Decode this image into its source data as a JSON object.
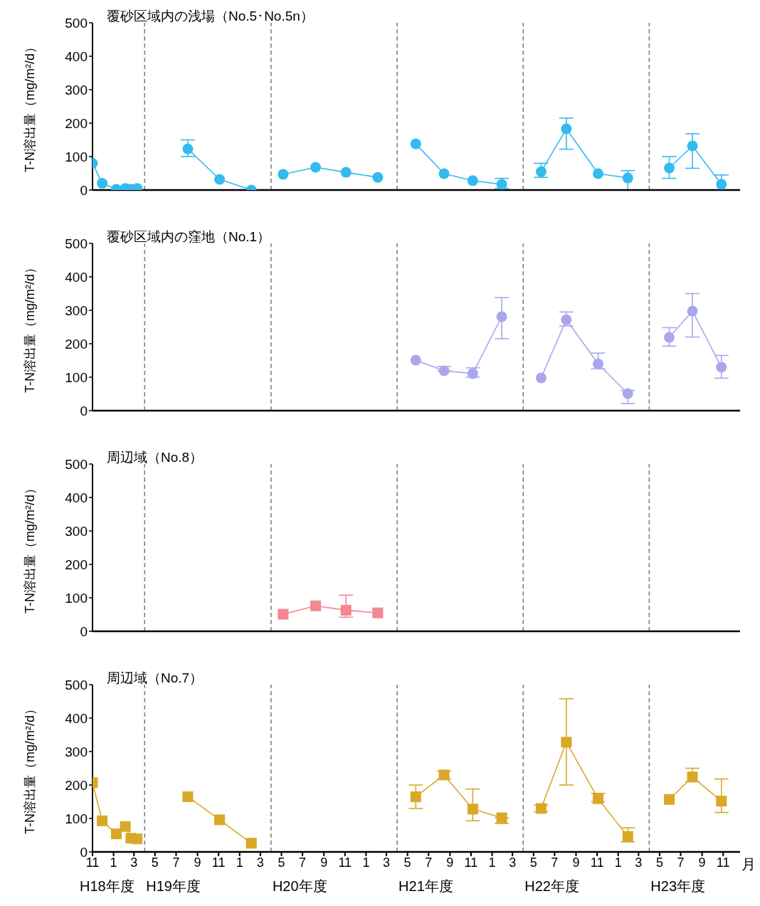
{
  "chart_data": [
    {
      "type": "line",
      "title": "覆砂区域内の浅場（No.5･No.5n）",
      "ylabel": "T-N溶出量（mg/m²/d）",
      "marker": "circle",
      "line_style": "solid",
      "tick_labels": "y",
      "x": [
        "2006-11-01",
        "2006-11-29",
        "2007-01-09",
        "2007-02-04",
        "2007-02-20",
        "2007-03-10",
        "2007-04-01",
        "2007-08-04",
        "2007-11-04",
        "2008-02-04",
        "2008-04-01",
        "2008-05-06",
        "2008-08-08",
        "2008-11-04",
        "2009-02-04",
        "2009-04-01",
        "2009-05-25",
        "2009-08-15",
        "2009-11-06",
        "2010-01-29",
        "2010-04-01",
        "2010-05-23",
        "2010-08-04",
        "2010-11-04",
        "2011-01-29",
        "2011-04-01",
        "2011-05-29",
        "2011-08-04",
        "2011-10-27"
      ],
      "series": [
        {
          "color": "#33bbee",
          "values": [
            80,
            20,
            2,
            5,
            2,
            5,
            null,
            123,
            32,
            0,
            null,
            47,
            68,
            53,
            38,
            null,
            138,
            49,
            28,
            17,
            null,
            55,
            183,
            49,
            36,
            null,
            66,
            132,
            17
          ],
          "errors": [
            null,
            null,
            null,
            null,
            null,
            null,
            null,
            [
              100,
              150
            ],
            null,
            null,
            null,
            null,
            null,
            null,
            null,
            null,
            null,
            null,
            null,
            [
              5,
              35
            ],
            null,
            [
              38,
              80
            ],
            [
              122,
              215
            ],
            null,
            [
              0,
              58
            ],
            null,
            [
              35,
              100
            ],
            [
              65,
              168
            ],
            [
              0,
              45
            ]
          ]
        }
      ],
      "xlim": [
        "2006-11-01",
        "2011-12-20"
      ],
      "xticks": [
        {
          "value": "2006-11",
          "label": null
        },
        {
          "value": "2007-01",
          "label": null
        },
        {
          "value": "2007-03",
          "label": null
        },
        {
          "value": "2007-05",
          "label": null
        },
        {
          "value": "2007-07",
          "label": null
        },
        {
          "value": "2007-09",
          "label": null
        },
        {
          "value": "2007-11",
          "label": null
        },
        {
          "value": "2008-01",
          "label": null
        },
        {
          "value": "2008-03",
          "label": null
        },
        {
          "value": "2008-05",
          "label": null
        },
        {
          "value": "2008-07",
          "label": null
        },
        {
          "value": "2008-09",
          "label": null
        },
        {
          "value": "2008-11",
          "label": null
        },
        {
          "value": "2009-01",
          "label": null
        },
        {
          "value": "2009-03",
          "label": null
        },
        {
          "value": "2009-05",
          "label": null
        },
        {
          "value": "2009-07",
          "label": null
        },
        {
          "value": "2009-09",
          "label": null
        },
        {
          "value": "2009-11",
          "label": null
        },
        {
          "value": "2010-01",
          "label": null
        },
        {
          "value": "2010-03",
          "label": null
        },
        {
          "value": "2010-05",
          "label": null
        },
        {
          "value": "2010-07",
          "label": null
        },
        {
          "value": "2010-09",
          "label": null
        },
        {
          "value": "2010-11",
          "label": null
        },
        {
          "value": "2011-01",
          "label": null
        },
        {
          "value": "2011-03",
          "label": null
        },
        {
          "value": "2011-05",
          "label": null
        },
        {
          "value": "2011-07",
          "label": null
        },
        {
          "value": "2011-09",
          "label": null
        },
        {
          "value": "2011-11",
          "label": null
        }
      ],
      "ylim": [
        0,
        500
      ],
      "yticks": [
        0,
        100,
        200,
        300,
        400,
        500
      ],
      "ref_lines": [
        {
          "axis": "x",
          "value": "2007-04-01",
          "color": "#808080",
          "line_style": "dashed"
        },
        {
          "axis": "x",
          "value": "2008-04-01",
          "color": "#808080",
          "line_style": "dashed"
        },
        {
          "axis": "x",
          "value": "2009-04-01",
          "color": "#808080",
          "line_style": "dashed"
        },
        {
          "axis": "x",
          "value": "2010-04-01",
          "color": "#808080",
          "line_style": "dashed"
        },
        {
          "axis": "x",
          "value": "2011-04-01",
          "color": "#808080",
          "line_style": "dashed"
        }
      ]
    },
    {
      "type": "line",
      "title": "覆砂区域内の窪地（No.1）",
      "ylabel": "T-N溶出量（mg/m²/d）",
      "marker": "circle",
      "line_style": "solid",
      "tick_labels": "y",
      "x": [
        "2009-05-25",
        "2009-08-15",
        "2009-11-06",
        "2010-01-29",
        "2010-04-01",
        "2010-05-23",
        "2010-08-04",
        "2010-11-04",
        "2011-01-29",
        "2011-04-01",
        "2011-05-29",
        "2011-08-04",
        "2011-10-27"
      ],
      "series": [
        {
          "color": "#aaa6ee",
          "values": [
            151,
            119,
            111,
            281,
            null,
            98,
            272,
            140,
            51,
            null,
            219,
            298,
            130
          ],
          "errors": [
            null,
            [
              119,
              132
            ],
            [
              100,
              128
            ],
            [
              215,
              338
            ],
            null,
            null,
            [
              253,
              295
            ],
            [
              125,
              172
            ],
            [
              21,
              60
            ],
            null,
            [
              193,
              248
            ],
            [
              220,
              350
            ],
            [
              97,
              165
            ]
          ]
        }
      ],
      "xlim": [
        "2006-11-01",
        "2011-12-20"
      ],
      "xticks": [
        {
          "value": "2006-11",
          "label": null
        },
        {
          "value": "2007-01",
          "label": null
        },
        {
          "value": "2007-03",
          "label": null
        },
        {
          "value": "2007-05",
          "label": null
        },
        {
          "value": "2007-07",
          "label": null
        },
        {
          "value": "2007-09",
          "label": null
        },
        {
          "value": "2007-11",
          "label": null
        },
        {
          "value": "2008-01",
          "label": null
        },
        {
          "value": "2008-03",
          "label": null
        },
        {
          "value": "2008-05",
          "label": null
        },
        {
          "value": "2008-07",
          "label": null
        },
        {
          "value": "2008-09",
          "label": null
        },
        {
          "value": "2008-11",
          "label": null
        },
        {
          "value": "2009-01",
          "label": null
        },
        {
          "value": "2009-03",
          "label": null
        },
        {
          "value": "2009-05",
          "label": null
        },
        {
          "value": "2009-07",
          "label": null
        },
        {
          "value": "2009-09",
          "label": null
        },
        {
          "value": "2009-11",
          "label": null
        },
        {
          "value": "2010-01",
          "label": null
        },
        {
          "value": "2010-03",
          "label": null
        },
        {
          "value": "2010-05",
          "label": null
        },
        {
          "value": "2010-07",
          "label": null
        },
        {
          "value": "2010-09",
          "label": null
        },
        {
          "value": "2010-11",
          "label": null
        },
        {
          "value": "2011-01",
          "label": null
        },
        {
          "value": "2011-03",
          "label": null
        },
        {
          "value": "2011-05",
          "label": null
        },
        {
          "value": "2011-07",
          "label": null
        },
        {
          "value": "2011-09",
          "label": null
        },
        {
          "value": "2011-11",
          "label": null
        }
      ],
      "ylim": [
        0,
        500
      ],
      "yticks": [
        0,
        100,
        200,
        300,
        400,
        500
      ],
      "ref_lines": [
        {
          "axis": "x",
          "value": "2007-04-01",
          "color": "#808080",
          "line_style": "dashed"
        },
        {
          "axis": "x",
          "value": "2008-04-01",
          "color": "#808080",
          "line_style": "dashed"
        },
        {
          "axis": "x",
          "value": "2009-04-01",
          "color": "#808080",
          "line_style": "dashed"
        },
        {
          "axis": "x",
          "value": "2010-04-01",
          "color": "#808080",
          "line_style": "dashed"
        },
        {
          "axis": "x",
          "value": "2011-04-01",
          "color": "#808080",
          "line_style": "dashed"
        }
      ]
    },
    {
      "type": "line",
      "title": "周辺域（No.8）",
      "ylabel": "T-N溶出量（mg/m²/d）",
      "marker": "square",
      "line_style": "solid",
      "tick_labels": "y",
      "x": [
        "2008-05-06",
        "2008-08-08",
        "2008-11-04",
        "2009-02-04"
      ],
      "series": [
        {
          "color": "#f4878f",
          "values": [
            51,
            76,
            63,
            55
          ],
          "errors": [
            null,
            null,
            [
              42,
              108
            ],
            null
          ]
        }
      ],
      "xlim": [
        "2006-11-01",
        "2011-12-20"
      ],
      "xticks": [
        {
          "value": "2006-11",
          "label": null
        },
        {
          "value": "2007-01",
          "label": null
        },
        {
          "value": "2007-03",
          "label": null
        },
        {
          "value": "2007-05",
          "label": null
        },
        {
          "value": "2007-07",
          "label": null
        },
        {
          "value": "2007-09",
          "label": null
        },
        {
          "value": "2007-11",
          "label": null
        },
        {
          "value": "2008-01",
          "label": null
        },
        {
          "value": "2008-03",
          "label": null
        },
        {
          "value": "2008-05",
          "label": null
        },
        {
          "value": "2008-07",
          "label": null
        },
        {
          "value": "2008-09",
          "label": null
        },
        {
          "value": "2008-11",
          "label": null
        },
        {
          "value": "2009-01",
          "label": null
        },
        {
          "value": "2009-03",
          "label": null
        },
        {
          "value": "2009-05",
          "label": null
        },
        {
          "value": "2009-07",
          "label": null
        },
        {
          "value": "2009-09",
          "label": null
        },
        {
          "value": "2009-11",
          "label": null
        },
        {
          "value": "2010-01",
          "label": null
        },
        {
          "value": "2010-03",
          "label": null
        },
        {
          "value": "2010-05",
          "label": null
        },
        {
          "value": "2010-07",
          "label": null
        },
        {
          "value": "2010-09",
          "label": null
        },
        {
          "value": "2010-11",
          "label": null
        },
        {
          "value": "2011-01",
          "label": null
        },
        {
          "value": "2011-03",
          "label": null
        },
        {
          "value": "2011-05",
          "label": null
        },
        {
          "value": "2011-07",
          "label": null
        },
        {
          "value": "2011-09",
          "label": null
        },
        {
          "value": "2011-11",
          "label": null
        }
      ],
      "ylim": [
        0,
        500
      ],
      "yticks": [
        0,
        100,
        200,
        300,
        400,
        500
      ],
      "ref_lines": [
        {
          "axis": "x",
          "value": "2007-04-01",
          "color": "#808080",
          "line_style": "dashed"
        },
        {
          "axis": "x",
          "value": "2008-04-01",
          "color": "#808080",
          "line_style": "dashed"
        },
        {
          "axis": "x",
          "value": "2009-04-01",
          "color": "#808080",
          "line_style": "dashed"
        },
        {
          "axis": "x",
          "value": "2010-04-01",
          "color": "#808080",
          "line_style": "dashed"
        },
        {
          "axis": "x",
          "value": "2011-04-01",
          "color": "#808080",
          "line_style": "dashed"
        }
      ]
    },
    {
      "type": "line",
      "title": "周辺域（No.7）",
      "ylabel": "T-N溶出量（mg/m²/d）",
      "xlabel": "月",
      "marker": "square",
      "line_style": "solid",
      "x": [
        "2006-11-01",
        "2006-11-29",
        "2007-01-09",
        "2007-02-04",
        "2007-02-20",
        "2007-03-10",
        "2007-04-01",
        "2007-08-04",
        "2007-11-04",
        "2008-02-04",
        "2009-04-01",
        "2009-05-25",
        "2009-08-15",
        "2009-11-06",
        "2010-01-29",
        "2010-04-01",
        "2010-05-23",
        "2010-08-04",
        "2010-11-04",
        "2011-01-29",
        "2011-04-01",
        "2011-05-29",
        "2011-08-04",
        "2011-10-27"
      ],
      "series": [
        {
          "color": "#d9a827",
          "values": [
            207,
            93,
            54,
            76,
            41,
            39,
            null,
            165,
            96,
            26,
            null,
            165,
            230,
            128,
            102,
            null,
            130,
            328,
            159,
            46,
            null,
            157,
            224,
            152
          ],
          "errors": [
            null,
            null,
            null,
            null,
            null,
            null,
            null,
            null,
            null,
            null,
            null,
            [
              130,
              200
            ],
            [
              218,
              242
            ],
            [
              93,
              188
            ],
            [
              85,
              102
            ],
            null,
            [
              120,
              140
            ],
            [
              200,
              458
            ],
            [
              150,
              175
            ],
            [
              30,
              72
            ],
            null,
            null,
            [
              210,
              250
            ],
            [
              118,
              218
            ]
          ]
        }
      ],
      "xlim": [
        "2006-11-01",
        "2011-12-20"
      ],
      "xticks": [
        {
          "value": "2006-11",
          "label": "11"
        },
        {
          "value": "2007-01",
          "label": "1"
        },
        {
          "value": "2007-03",
          "label": "3"
        },
        {
          "value": "2007-05",
          "label": "5"
        },
        {
          "value": "2007-07",
          "label": "7"
        },
        {
          "value": "2007-09",
          "label": "9"
        },
        {
          "value": "2007-11",
          "label": "11"
        },
        {
          "value": "2008-01",
          "label": "1"
        },
        {
          "value": "2008-03",
          "label": "3"
        },
        {
          "value": "2008-05",
          "label": "5"
        },
        {
          "value": "2008-07",
          "label": "7"
        },
        {
          "value": "2008-09",
          "label": "9"
        },
        {
          "value": "2008-11",
          "label": "11"
        },
        {
          "value": "2009-01",
          "label": "1"
        },
        {
          "value": "2009-03",
          "label": "3"
        },
        {
          "value": "2009-05",
          "label": "5"
        },
        {
          "value": "2009-07",
          "label": "7"
        },
        {
          "value": "2009-09",
          "label": "9"
        },
        {
          "value": "2009-11",
          "label": "11"
        },
        {
          "value": "2010-01",
          "label": "1"
        },
        {
          "value": "2010-03",
          "label": "3"
        },
        {
          "value": "2010-05",
          "label": "5"
        },
        {
          "value": "2010-07",
          "label": "7"
        },
        {
          "value": "2010-09",
          "label": "9"
        },
        {
          "value": "2010-11",
          "label": "11"
        },
        {
          "value": "2011-01",
          "label": "1"
        },
        {
          "value": "2011-03",
          "label": "3"
        },
        {
          "value": "2011-05",
          "label": "5"
        },
        {
          "value": "2011-07",
          "label": "7"
        },
        {
          "value": "2011-09",
          "label": "9"
        },
        {
          "value": "2011-11",
          "label": "11"
        }
      ],
      "ylim": [
        0,
        500
      ],
      "yticks": [
        0,
        100,
        200,
        300,
        400,
        500
      ],
      "ref_lines": [
        {
          "axis": "x",
          "value": "2007-04-01",
          "color": "#808080",
          "line_style": "dashed"
        },
        {
          "axis": "x",
          "value": "2008-04-01",
          "color": "#808080",
          "line_style": "dashed"
        },
        {
          "axis": "x",
          "value": "2009-04-01",
          "color": "#808080",
          "line_style": "dashed"
        },
        {
          "axis": "x",
          "value": "2010-04-01",
          "color": "#808080",
          "line_style": "dashed"
        },
        {
          "axis": "x",
          "value": "2011-04-01",
          "color": "#808080",
          "line_style": "dashed"
        }
      ],
      "annotations": [
        "H18年度",
        "H19年度",
        "H20年度",
        "H21年度",
        "H22年度",
        "H23年度"
      ]
    }
  ]
}
